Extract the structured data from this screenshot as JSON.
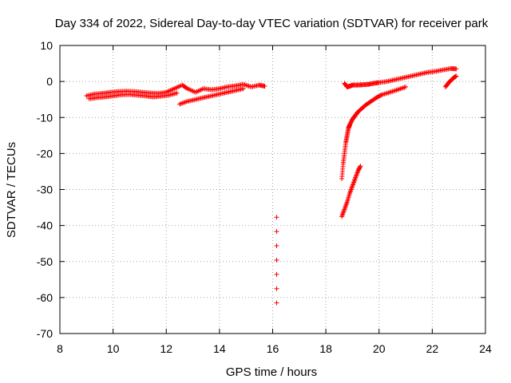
{
  "chart_data": {
    "type": "scatter",
    "title": "Day 334 of 2022, Sidereal Day-to-day VTEC variation (SDTVAR) for receiver park",
    "xlabel": "GPS time / hours",
    "ylabel": "SDTVAR / TECUs",
    "xlim": [
      8,
      24
    ],
    "ylim": [
      -70,
      10
    ],
    "x_ticks": [
      "8",
      "10",
      "12",
      "14",
      "16",
      "18",
      "20",
      "22",
      "24"
    ],
    "y_ticks": [
      "10",
      "0",
      "-10",
      "-20",
      "-30",
      "-40",
      "-50",
      "-60",
      "-70"
    ],
    "grid": true,
    "marker": "+",
    "color": "#ff0000",
    "series": [
      {
        "x": [
          9.0,
          9.3,
          9.6,
          9.9,
          10.2,
          10.5,
          10.8,
          11.1,
          11.4,
          11.7,
          12.0,
          12.3,
          12.6,
          12.8,
          13.1,
          13.4,
          13.7,
          14.0,
          14.3,
          14.6,
          14.9,
          15.2,
          15.5,
          15.7
        ],
        "y": [
          -4,
          -3.5,
          -3.3,
          -3,
          -2.8,
          -2.7,
          -2.8,
          -3,
          -3.2,
          -3.3,
          -3,
          -2,
          -1,
          -2,
          -3,
          -2,
          -2.3,
          -2,
          -1.5,
          -1.2,
          -0.8,
          -1.5,
          -1,
          -1.3
        ]
      },
      {
        "x": [
          9.1,
          9.4,
          9.7,
          10.0,
          10.3,
          10.6,
          10.9,
          11.2,
          11.5,
          11.8,
          12.1,
          12.4
        ],
        "y": [
          -4.8,
          -4.5,
          -4.3,
          -4,
          -3.7,
          -3.6,
          -3.8,
          -4,
          -4.3,
          -4.1,
          -3.8,
          -3.2
        ]
      },
      {
        "x": [
          12.5,
          12.8,
          13.1,
          13.4,
          13.7,
          14.0,
          14.3,
          14.6,
          14.9
        ],
        "y": [
          -6.3,
          -5.5,
          -5,
          -4.5,
          -4,
          -3.5,
          -3,
          -2.5,
          -2
        ]
      },
      {
        "x": [
          18.7,
          18.8,
          18.9,
          19.0,
          19.2,
          19.4,
          19.6,
          19.8,
          20.0,
          20.3,
          20.6,
          20.9,
          21.2,
          21.5,
          21.8,
          22.1,
          22.4,
          22.7,
          22.9
        ],
        "y": [
          -0.5,
          -1.5,
          -1.3,
          -1,
          -1,
          -0.9,
          -0.8,
          -0.5,
          -0.3,
          0,
          0.5,
          1,
          1.5,
          2,
          2.5,
          2.8,
          3.2,
          3.6,
          3.5
        ]
      },
      {
        "x": [
          18.6,
          18.65,
          18.7,
          18.75,
          18.8,
          18.85,
          18.9,
          19.0,
          19.1,
          19.2,
          19.35,
          19.5,
          19.7,
          19.9,
          20.1,
          20.4,
          20.7,
          21.0
        ],
        "y": [
          -27,
          -23,
          -20,
          -17,
          -15,
          -13,
          -12,
          -10.5,
          -9.5,
          -8.5,
          -7.5,
          -6.5,
          -5.5,
          -4.5,
          -3.7,
          -3,
          -2.3,
          -1.5
        ]
      },
      {
        "x": [
          18.6,
          18.7,
          18.8,
          18.9,
          19.0,
          19.1,
          19.2,
          19.3
        ],
        "y": [
          -37.5,
          -35.5,
          -33.5,
          -31,
          -29,
          -27,
          -25,
          -23.5
        ]
      },
      {
        "x": [
          22.5,
          22.6,
          22.7,
          22.8,
          22.9
        ],
        "y": [
          -1.5,
          -0.5,
          0.3,
          1.0,
          1.5
        ]
      },
      {
        "x": [
          16.15,
          16.15
        ],
        "y": [
          -37.7,
          -61.5
        ]
      }
    ]
  }
}
